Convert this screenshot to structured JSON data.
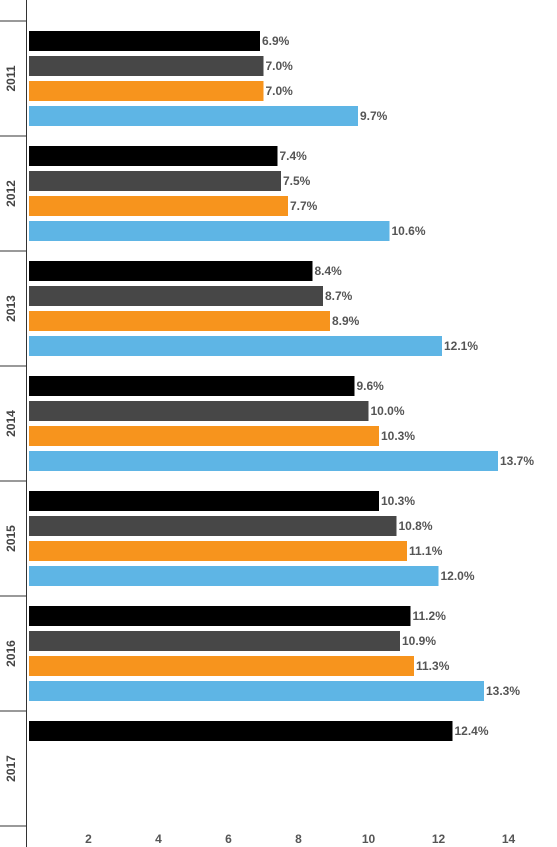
{
  "chart_data": {
    "type": "bar",
    "orientation": "horizontal",
    "title": "",
    "xlabel": "",
    "ylabel": "",
    "xlim": [
      0.3,
      15.2
    ],
    "x_ticks": [
      2,
      4,
      6,
      8,
      10,
      12,
      14
    ],
    "grid": false,
    "legend": "none",
    "categories": [
      "2011",
      "2012",
      "2013",
      "2014",
      "2015",
      "2016",
      "2017"
    ],
    "series": [
      {
        "color": "#000000",
        "values": [
          6.9,
          7.4,
          8.4,
          9.6,
          10.3,
          11.2,
          12.4
        ],
        "labels": [
          "6.9%",
          "7.4%",
          "8.4%",
          "9.6%",
          "10.3%",
          "11.2%",
          "12.4%"
        ]
      },
      {
        "color": "#474747",
        "values": [
          7.0,
          7.5,
          8.7,
          10.0,
          10.8,
          10.9,
          null
        ],
        "labels": [
          "7.0%",
          "7.5%",
          "8.7%",
          "10.0%",
          "10.8%",
          "10.9%",
          null
        ]
      },
      {
        "color": "#f7941d",
        "values": [
          7.0,
          7.7,
          8.9,
          10.3,
          11.1,
          11.3,
          null
        ],
        "labels": [
          "7.0%",
          "7.7%",
          "8.9%",
          "10.3%",
          "11.1%",
          "11.3%",
          null
        ]
      },
      {
        "color": "#5eb5e5",
        "values": [
          9.7,
          10.6,
          12.1,
          13.7,
          12.0,
          13.3,
          null
        ],
        "labels": [
          "9.7%",
          "10.6%",
          "12.1%",
          "13.7%",
          "12.0%",
          "13.3%",
          null
        ]
      }
    ]
  }
}
